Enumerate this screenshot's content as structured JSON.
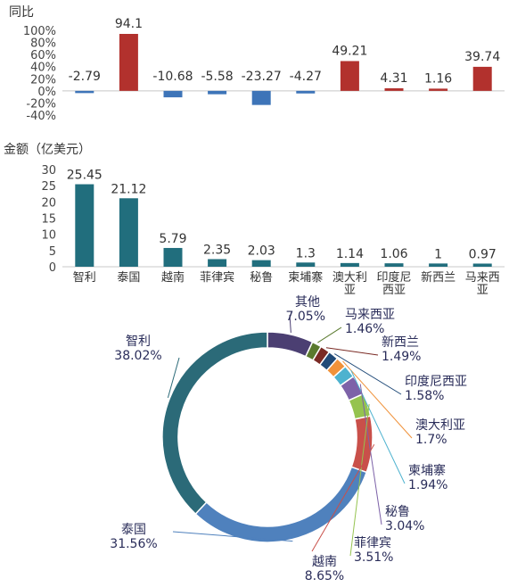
{
  "charts": {
    "yoy": {
      "type": "bar",
      "ylabel": "同比",
      "yticks": [
        "100%",
        "80%",
        "60%",
        "40%",
        "20%",
        "0%",
        "-20%",
        "-40%"
      ],
      "ylim": [
        -40,
        100
      ],
      "categories": [
        "智利",
        "泰国",
        "越南",
        "菲律宾",
        "秘鲁",
        "柬埔寨",
        "澳大利亚",
        "印度尼西亚",
        "新西兰",
        "马来西亚"
      ],
      "values": [
        -2.79,
        94.1,
        -10.68,
        -5.58,
        -23.27,
        -4.27,
        49.21,
        4.31,
        1.16,
        39.74
      ],
      "labels": [
        "-2.79",
        "94.1",
        "-10.68",
        "-5.58",
        "-23.27",
        "-4.27",
        "49.21",
        "4.31",
        "1.16",
        "39.74"
      ],
      "colors": {
        "positive": "#b2312d",
        "negative": "#3d74b8"
      }
    },
    "amount": {
      "type": "bar",
      "ylabel": "金额（亿美元）",
      "yticks": [
        "30",
        "25",
        "20",
        "15",
        "10",
        "5",
        "0"
      ],
      "ylim": [
        0,
        30
      ],
      "categories": [
        [
          "智利"
        ],
        [
          "泰国"
        ],
        [
          "越南"
        ],
        [
          "菲律宾"
        ],
        [
          "秘鲁"
        ],
        [
          "柬埔寨"
        ],
        [
          "澳大利",
          "亚"
        ],
        [
          "印度尼",
          "西亚"
        ],
        [
          "新西兰"
        ],
        [
          "马来西",
          "亚"
        ]
      ],
      "values": [
        25.45,
        21.12,
        5.79,
        2.35,
        2.03,
        1.3,
        1.14,
        1.06,
        1,
        0.97
      ],
      "labels": [
        "25.45",
        "21.12",
        "5.79",
        "2.35",
        "2.03",
        "1.3",
        "1.14",
        "1.06",
        "1",
        "0.97"
      ],
      "color": "#216e7d"
    },
    "share": {
      "type": "pie",
      "slices": [
        {
          "name": "其他",
          "value": 7.05,
          "label": "7.05%",
          "color": "#4b3f72"
        },
        {
          "name": "马来西亚",
          "value": 1.46,
          "label": "1.46%",
          "color": "#5a7a2e"
        },
        {
          "name": "新西兰",
          "value": 1.49,
          "label": "1.49%",
          "color": "#7a2a24"
        },
        {
          "name": "印度尼西亚",
          "value": 1.58,
          "label": "1.58%",
          "color": "#204a78"
        },
        {
          "name": "澳大利亚",
          "value": 1.7,
          "label": "1.7%",
          "color": "#f0923a"
        },
        {
          "name": "柬埔寨",
          "value": 1.94,
          "label": "1.94%",
          "color": "#4db2cf"
        },
        {
          "name": "秘鲁",
          "value": 3.04,
          "label": "3.04%",
          "color": "#7d62a8"
        },
        {
          "name": "菲律宾",
          "value": 3.51,
          "label": "3.51%",
          "color": "#95c34f"
        },
        {
          "name": "越南",
          "value": 8.65,
          "label": "8.65%",
          "color": "#c9504a"
        },
        {
          "name": "泰国",
          "value": 31.56,
          "label": "31.56%",
          "color": "#4f81bd"
        },
        {
          "name": "智利",
          "value": 38.02,
          "label": "38.02%",
          "color": "#2b6a78"
        }
      ]
    }
  }
}
